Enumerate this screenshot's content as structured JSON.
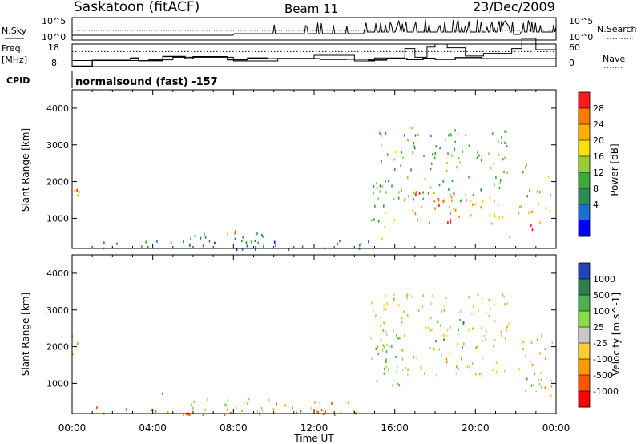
{
  "header": {
    "station": "Saskatoon (fitACF)",
    "beam": "Beam 11",
    "date": "23/Dec/2009"
  },
  "chart_data": [
    {
      "type": "line",
      "panel": "noise",
      "left_label": "N.Sky",
      "right_label": "N.Search",
      "left_ticks": [
        "10^5",
        "10^0"
      ],
      "right_ticks": [
        "10^5",
        "10^0"
      ]
    },
    {
      "type": "line",
      "panel": "frequency",
      "left_label_1": "Freq.",
      "left_label_2": "[MHz]",
      "right_label": "Nave",
      "left_ticks": [
        "18",
        "8"
      ],
      "right_ticks": [
        "60",
        "0"
      ],
      "freq_steps_mhz": [
        [
          0.0,
          8.2
        ],
        [
          1.0,
          10.8
        ],
        [
          2.0,
          10.8
        ],
        [
          2.9,
          11.8
        ],
        [
          3.3,
          10.6
        ],
        [
          4.5,
          12.5
        ],
        [
          5.6,
          11.5
        ],
        [
          6.0,
          12.4
        ],
        [
          7.7,
          11.0
        ],
        [
          8.7,
          11.8
        ],
        [
          9.7,
          11.5
        ],
        [
          12.3,
          11.2
        ],
        [
          13.6,
          11.3
        ],
        [
          14.7,
          10.9
        ],
        [
          15.6,
          11.6
        ],
        [
          16.6,
          11.1
        ],
        [
          17.4,
          11.7
        ],
        [
          18.0,
          11.2
        ],
        [
          19.0,
          12.0
        ],
        [
          20.3,
          11.5
        ],
        [
          22.0,
          11.5
        ],
        [
          24.0,
          11.5
        ]
      ],
      "nave_steps": [
        [
          0.0,
          16
        ],
        [
          3.8,
          18
        ],
        [
          5.0,
          25
        ],
        [
          8.0,
          15
        ],
        [
          10.2,
          22
        ],
        [
          12.0,
          30
        ],
        [
          14.0,
          15
        ],
        [
          15.0,
          23
        ],
        [
          16.5,
          48
        ],
        [
          17.0,
          25
        ],
        [
          17.6,
          52
        ],
        [
          18.0,
          60
        ],
        [
          18.6,
          50
        ],
        [
          19.5,
          28
        ],
        [
          20.4,
          35
        ],
        [
          21.8,
          48
        ],
        [
          22.3,
          75
        ],
        [
          23.0,
          45
        ],
        [
          24.0,
          45
        ]
      ],
      "nave_dotted_level": 40
    },
    {
      "type": "text",
      "panel": "cpid",
      "label": "CPID",
      "value": "normalsound (fast) -157"
    },
    {
      "type": "heatmap",
      "panel": "power",
      "ylabel": "Slant Range [km]",
      "yticks": [
        "4000",
        "3000",
        "2000",
        "1000"
      ],
      "ylim": [
        180,
        4500
      ],
      "colorbar_label": "Power [dB]",
      "colorbar_ticks": [
        "28",
        "24",
        "20",
        "16",
        "12",
        "8",
        "4"
      ],
      "colorbar_colors": [
        "#ff1a1a",
        "#ff7b00",
        "#ffb000",
        "#ffe000",
        "#9acd32",
        "#3aaa3a",
        "#2e8b57",
        "#1e6ed2",
        "#0000ff"
      ],
      "scatter_blocks": [
        {
          "t": [
            0.0,
            0.35
          ],
          "r": [
            1300,
            2500
          ],
          "p": 18
        },
        {
          "t": [
            0.1,
            0.25
          ],
          "r": [
            1600,
            1900
          ],
          "p": 26
        },
        {
          "t": [
            0.5,
            14.8
          ],
          "r": [
            180,
            420
          ],
          "p": 6
        },
        {
          "t": [
            5.5,
            9.5
          ],
          "r": [
            260,
            700
          ],
          "p": 10
        },
        {
          "t": [
            7.3,
            8.7
          ],
          "r": [
            420,
            650
          ],
          "p": 22
        },
        {
          "t": [
            14.7,
            15.6
          ],
          "r": [
            900,
            2600
          ],
          "p": 12
        },
        {
          "t": [
            15.3,
            16.2
          ],
          "r": [
            400,
            1100
          ],
          "p": 18
        },
        {
          "t": [
            15.0,
            21.7
          ],
          "r": [
            1500,
            3500
          ],
          "p": 12
        },
        {
          "t": [
            16.0,
            19.5
          ],
          "r": [
            900,
            1800
          ],
          "p": 27
        },
        {
          "t": [
            19.5,
            21.4
          ],
          "r": [
            800,
            1600
          ],
          "p": 24
        },
        {
          "t": [
            21.5,
            21.8
          ],
          "r": [
            400,
            900
          ],
          "p": 14
        },
        {
          "t": [
            22.1,
            22.6
          ],
          "r": [
            900,
            2500
          ],
          "p": 14
        },
        {
          "t": [
            22.5,
            23.4
          ],
          "r": [
            700,
            1800
          ],
          "p": 26
        },
        {
          "t": [
            23.4,
            23.8
          ],
          "r": [
            1200,
            2200
          ],
          "p": 22
        }
      ]
    },
    {
      "type": "heatmap",
      "panel": "velocity",
      "ylabel": "Slant Range [km]",
      "yticks": [
        "4000",
        "3000",
        "2000",
        "1000"
      ],
      "ylim": [
        180,
        4500
      ],
      "colorbar_label": "Velocity [m s^-1]",
      "colorbar_ticks": [
        "1000",
        "500",
        "100",
        "25",
        "-25",
        "-100",
        "-500",
        "-1000"
      ],
      "colorbar_colors": [
        "#2244bb",
        "#2e7d4f",
        "#4caf50",
        "#88dd44",
        "#c8c8c8",
        "#ffcc33",
        "#ff9900",
        "#ff5500",
        "#ff0000"
      ],
      "scatter_blocks": [
        {
          "t": [
            0.0,
            0.4
          ],
          "r": [
            1400,
            2400
          ],
          "v": 0
        },
        {
          "t": [
            0.5,
            14.8
          ],
          "r": [
            180,
            380
          ],
          "v": -200
        },
        {
          "t": [
            4.3,
            5.0
          ],
          "r": [
            700,
            850
          ],
          "v": 150
        },
        {
          "t": [
            5.5,
            10.0
          ],
          "r": [
            260,
            620
          ],
          "v": 60
        },
        {
          "t": [
            10.0,
            14.5
          ],
          "r": [
            200,
            520
          ],
          "v": -150
        },
        {
          "t": [
            14.8,
            21.7
          ],
          "r": [
            1200,
            3500
          ],
          "v": 0
        },
        {
          "t": [
            15.0,
            16.2
          ],
          "r": [
            900,
            2400
          ],
          "v": 200
        },
        {
          "t": [
            18.0,
            19.5
          ],
          "r": [
            2000,
            2800
          ],
          "v": 400
        },
        {
          "t": [
            22.1,
            23.8
          ],
          "r": [
            700,
            2400
          ],
          "v": 0
        },
        {
          "t": [
            22.4,
            23.2
          ],
          "r": [
            800,
            1500
          ],
          "v": 200
        }
      ]
    }
  ],
  "time_axis": {
    "label": "Time UT",
    "ticks": [
      "00:00",
      "04:00",
      "08:00",
      "12:00",
      "16:00",
      "20:00",
      "00:00"
    ]
  }
}
